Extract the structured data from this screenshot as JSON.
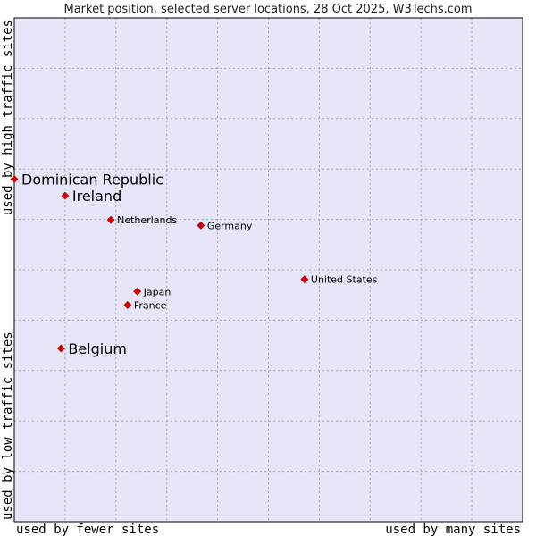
{
  "colors": {
    "plot_bg": "#e6e6f8",
    "grid": "#a0a0b8",
    "frame": "#000000",
    "point": "#dd0000"
  },
  "chart_data": {
    "type": "scatter",
    "title": "Market position, selected server locations, 28 Oct 2025, W3Techs.com",
    "xlabel_left": "used by fewer sites",
    "xlabel_right": "used by many sites",
    "ylabel_bottom": "used by low traffic sites",
    "ylabel_top": "used by high traffic sites",
    "xlim": [
      0,
      100
    ],
    "ylim": [
      0,
      100
    ],
    "grid": true,
    "points": [
      {
        "label": "Dominican Republic",
        "x": 0,
        "y": 68,
        "emphasis": true
      },
      {
        "label": "Ireland",
        "x": 10,
        "y": 64.7,
        "emphasis": true
      },
      {
        "label": "Netherlands",
        "x": 19,
        "y": 59.9,
        "emphasis": false
      },
      {
        "label": "Germany",
        "x": 36.7,
        "y": 58.8,
        "emphasis": false
      },
      {
        "label": "United States",
        "x": 57.1,
        "y": 48.1,
        "emphasis": false
      },
      {
        "label": "Japan",
        "x": 24.2,
        "y": 45.7,
        "emphasis": false
      },
      {
        "label": "France",
        "x": 22.3,
        "y": 43,
        "emphasis": false
      },
      {
        "label": "Belgium",
        "x": 9.2,
        "y": 34.4,
        "emphasis": true
      }
    ]
  }
}
